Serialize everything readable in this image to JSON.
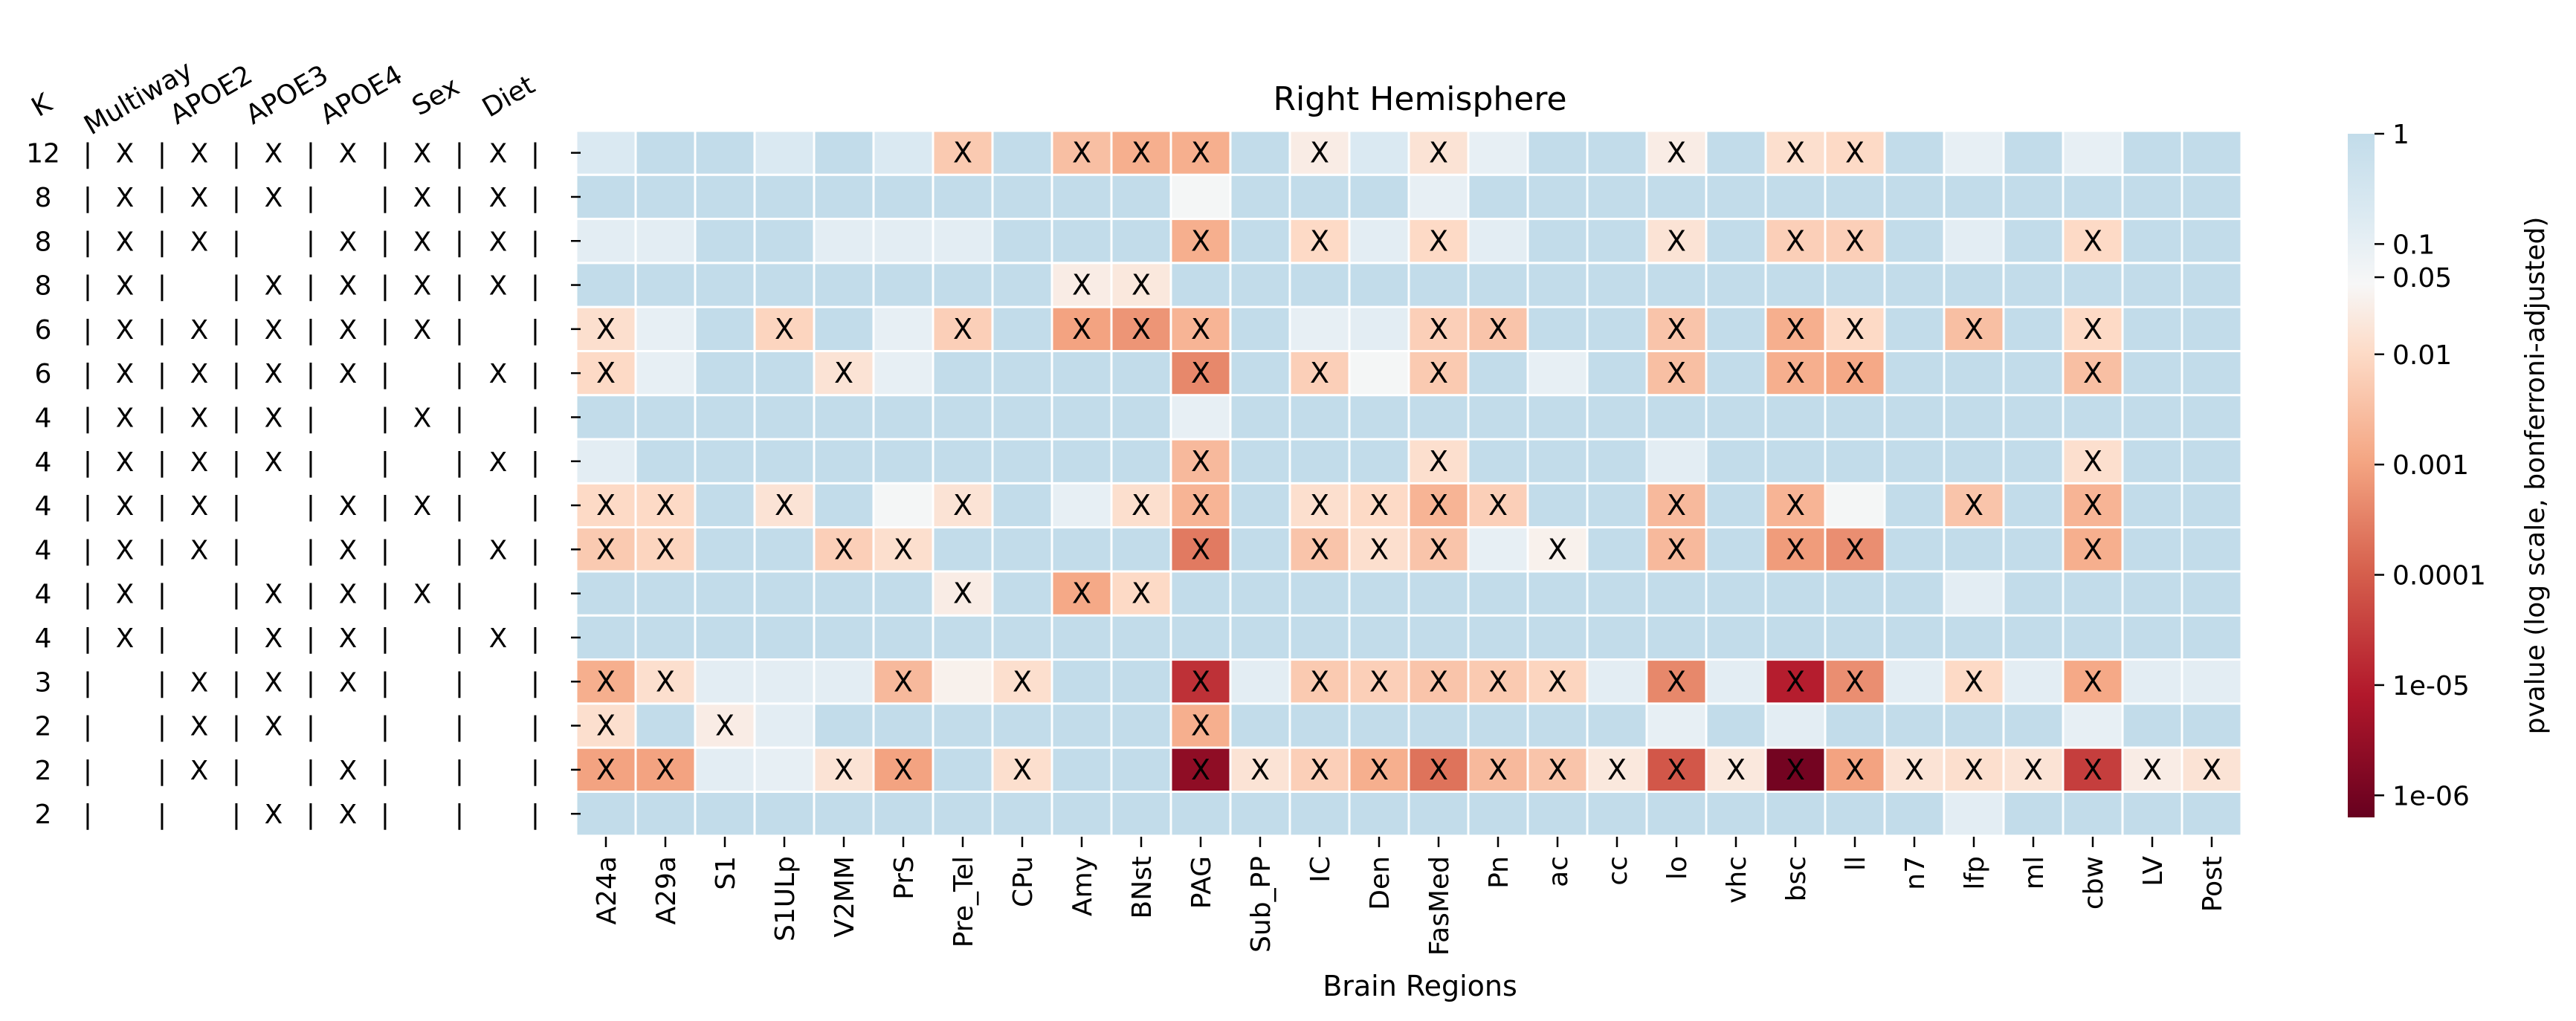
{
  "chart_data": {
    "type": "heatmap",
    "title": "Right Hemisphere",
    "xlabel": "Brain Regions",
    "colorbar_label": "pvalue (log scale, bonferroni-adjusted)",
    "colorbar_ticks": [
      "1",
      "0.1",
      "0.05",
      "0.01",
      "0.001",
      "0.0001",
      "1e-05",
      "1e-06"
    ],
    "colormap": "RdBu",
    "scale": "log",
    "colors": {
      "not_significant": "#c2dcea",
      "high_p": "#dceaf2",
      "neutral": "#f7f7f7",
      "mid": "#f4a582",
      "low_p": "#b2182b",
      "lowest_p": "#67001f"
    },
    "design_headers": [
      "K",
      "Multiway",
      "APOE2",
      "APOE3",
      "APOE4",
      "Sex",
      "Diet"
    ],
    "design_rows": [
      {
        "K": "12",
        "factors": [
          "X",
          "X",
          "X",
          "X",
          "X",
          "X"
        ]
      },
      {
        "K": "8",
        "factors": [
          "X",
          "X",
          "X",
          "",
          "X",
          "X"
        ]
      },
      {
        "K": "8",
        "factors": [
          "X",
          "X",
          "",
          "X",
          "X",
          "X"
        ]
      },
      {
        "K": "8",
        "factors": [
          "X",
          "",
          "X",
          "X",
          "X",
          "X"
        ]
      },
      {
        "K": "6",
        "factors": [
          "X",
          "X",
          "X",
          "X",
          "X",
          ""
        ]
      },
      {
        "K": "6",
        "factors": [
          "X",
          "X",
          "X",
          "X",
          "",
          "X"
        ]
      },
      {
        "K": "4",
        "factors": [
          "X",
          "X",
          "X",
          "",
          "X",
          ""
        ]
      },
      {
        "K": "4",
        "factors": [
          "X",
          "X",
          "X",
          "",
          "",
          "X"
        ]
      },
      {
        "K": "4",
        "factors": [
          "X",
          "X",
          "",
          "X",
          "X",
          ""
        ]
      },
      {
        "K": "4",
        "factors": [
          "X",
          "X",
          "",
          "X",
          "",
          "X"
        ]
      },
      {
        "K": "4",
        "factors": [
          "X",
          "",
          "X",
          "X",
          "X",
          ""
        ]
      },
      {
        "K": "4",
        "factors": [
          "X",
          "",
          "X",
          "X",
          "",
          "X"
        ]
      },
      {
        "K": "3",
        "factors": [
          "",
          "X",
          "X",
          "X",
          "",
          ""
        ]
      },
      {
        "K": "2",
        "factors": [
          "",
          "X",
          "X",
          "",
          "",
          ""
        ]
      },
      {
        "K": "2",
        "factors": [
          "",
          "X",
          "",
          "X",
          "",
          ""
        ]
      },
      {
        "K": "2",
        "factors": [
          "",
          "",
          "X",
          "X",
          "",
          ""
        ]
      }
    ],
    "regions": [
      "A24a",
      "A29a",
      "S1",
      "S1ULp",
      "V2MM",
      "PrS",
      "Pre_Tel",
      "CPu",
      "Amy",
      "BNst",
      "PAG",
      "Sub_PP",
      "IC",
      "Den",
      "FasMed",
      "Pn",
      "ac",
      "cc",
      "lo",
      "vhc",
      "bsc",
      "ll",
      "n7",
      "lfp",
      "ml",
      "cbw",
      "LV",
      "Post"
    ],
    "mark_label": "X",
    "log10_pvalues": [
      [
        -0.7,
        0,
        0,
        -0.7,
        0,
        -0.7,
        -2.3,
        0,
        -2.5,
        -2.8,
        -2.8,
        0,
        -1.6,
        -0.7,
        -1.8,
        -1.0,
        0,
        0,
        -1.6,
        0,
        -1.9,
        -2.0,
        0,
        -1.0,
        0,
        -1.0,
        0,
        0
      ],
      [
        0,
        0,
        0,
        0,
        0,
        0,
        0,
        0,
        0,
        0,
        -1.3,
        0,
        0,
        0,
        -1.0,
        0,
        0,
        0,
        0,
        0,
        0,
        0,
        0,
        0,
        0,
        0,
        0,
        0
      ],
      [
        -0.9,
        -0.9,
        0,
        0,
        -0.9,
        -0.9,
        -0.9,
        0,
        0,
        0,
        -2.8,
        0,
        -2.0,
        -0.9,
        -2.0,
        -0.9,
        0,
        0,
        -1.8,
        0,
        -2.2,
        -2.2,
        0,
        -0.9,
        0,
        -2.0,
        0,
        0
      ],
      [
        0,
        0,
        0,
        0,
        0,
        0,
        0,
        0,
        -1.6,
        -1.7,
        0,
        0,
        0,
        0,
        0,
        0,
        0,
        0,
        0,
        0,
        0,
        0,
        0,
        0,
        0,
        0,
        0,
        0
      ],
      [
        -1.9,
        -1.0,
        0,
        -2.1,
        0,
        -1.0,
        -2.2,
        0,
        -3.0,
        -3.2,
        -2.7,
        0,
        -1.0,
        -0.9,
        -2.2,
        -2.4,
        0,
        0,
        -2.4,
        0,
        -2.8,
        -2.0,
        0,
        -2.5,
        0,
        -2.0,
        0,
        0
      ],
      [
        -2.0,
        -1.0,
        0,
        0,
        -1.8,
        -1.0,
        0,
        0,
        0,
        0,
        -3.4,
        0,
        -2.2,
        -1.3,
        -2.3,
        0,
        -1.0,
        0,
        -2.5,
        0,
        -2.8,
        -2.9,
        0,
        0,
        0,
        -2.5,
        0,
        0
      ],
      [
        0,
        0,
        0,
        0,
        0,
        0,
        0,
        0,
        0,
        0,
        -1.0,
        0,
        0,
        0,
        0,
        0,
        0,
        0,
        0,
        0,
        0,
        0,
        0,
        0,
        0,
        0,
        0,
        0
      ],
      [
        -0.9,
        0,
        0,
        0,
        0,
        0,
        0,
        0,
        0,
        0,
        -2.6,
        0,
        0,
        0,
        -1.9,
        0,
        0,
        0,
        -0.9,
        0,
        0,
        0,
        0,
        0,
        0,
        -1.9,
        0,
        0
      ],
      [
        -2.0,
        -2.0,
        0,
        -1.8,
        0,
        -1.3,
        -1.8,
        0,
        -1.0,
        -1.9,
        -2.7,
        0,
        -1.9,
        -2.0,
        -2.7,
        -2.2,
        0,
        0,
        -2.6,
        0,
        -2.7,
        -1.3,
        0,
        -2.4,
        0,
        -2.7,
        0,
        0
      ],
      [
        -2.3,
        -2.1,
        0,
        0,
        -2.2,
        -1.9,
        0,
        0,
        0,
        0,
        -3.6,
        0,
        -2.4,
        -1.9,
        -2.4,
        -1.0,
        -1.5,
        0,
        -2.6,
        0,
        -3.1,
        -3.3,
        0,
        0,
        0,
        -2.8,
        0,
        0
      ],
      [
        0,
        0,
        0,
        0,
        0,
        0,
        -1.6,
        0,
        -2.9,
        -2.0,
        0,
        0,
        0,
        0,
        0,
        0,
        0,
        0,
        0,
        0,
        0,
        0,
        0,
        -0.9,
        0,
        0,
        0,
        0
      ],
      [
        0,
        0,
        0,
        0,
        0,
        0,
        0,
        0,
        0,
        0,
        0,
        0,
        0,
        0,
        0,
        0,
        0,
        0,
        0,
        0,
        0,
        0,
        0,
        0,
        0,
        0,
        0,
        0
      ],
      [
        -2.8,
        -1.9,
        -0.9,
        -0.9,
        -0.9,
        -2.6,
        -1.5,
        -1.9,
        0,
        0,
        -4.7,
        -0.9,
        -2.3,
        -2.2,
        -2.4,
        -2.3,
        -2.1,
        -0.9,
        -3.4,
        -0.9,
        -5.0,
        -3.3,
        -0.9,
        -2.0,
        -0.9,
        -2.9,
        -0.9,
        -0.9
      ],
      [
        -1.9,
        0,
        -1.6,
        -0.9,
        0,
        0,
        0,
        0,
        0,
        0,
        -2.8,
        0,
        0,
        0,
        0,
        0,
        0,
        0,
        -1.0,
        0,
        -0.9,
        0,
        0,
        0,
        0,
        -1.0,
        0,
        0
      ],
      [
        -3.0,
        -3.0,
        -0.9,
        -1.0,
        -1.8,
        -3.0,
        0,
        -1.9,
        0,
        0,
        -5.6,
        -1.8,
        -2.2,
        -2.8,
        -3.7,
        -2.6,
        -2.4,
        -1.7,
        -4.1,
        -1.7,
        -6.0,
        -3.0,
        -1.8,
        -1.9,
        -1.8,
        -4.5,
        -1.6,
        -1.8
      ],
      [
        0,
        0,
        0,
        0,
        0,
        0,
        0,
        0,
        0,
        0,
        0,
        0,
        0,
        0,
        0,
        0,
        0,
        0,
        0,
        0,
        0,
        0,
        0,
        -0.9,
        0,
        0,
        0,
        0
      ]
    ],
    "significant_marks": [
      [
        "",
        "",
        "",
        "",
        "",
        "",
        "X",
        "",
        "X",
        "X",
        "X",
        "",
        "X",
        "",
        "X",
        "",
        "",
        "",
        "X",
        "",
        "X",
        "X",
        "",
        "",
        "",
        "",
        "",
        ""
      ],
      [
        "",
        "",
        "",
        "",
        "",
        "",
        "",
        "",
        "",
        "",
        "",
        "",
        "",
        "",
        "",
        "",
        "",
        "",
        "",
        "",
        "",
        "",
        "",
        "",
        "",
        "",
        "",
        ""
      ],
      [
        "",
        "",
        "",
        "",
        "",
        "",
        "",
        "",
        "",
        "",
        "X",
        "",
        "X",
        "",
        "X",
        "",
        "",
        "",
        "X",
        "",
        "X",
        "X",
        "",
        "",
        "",
        "X",
        "",
        ""
      ],
      [
        "",
        "",
        "",
        "",
        "",
        "",
        "",
        "",
        "X",
        "X",
        "",
        "",
        "",
        "",
        "",
        "",
        "",
        "",
        "",
        "",
        "",
        "",
        "",
        "",
        "",
        "",
        "",
        ""
      ],
      [
        "X",
        "",
        "",
        "X",
        "",
        "",
        "X",
        "",
        "X",
        "X",
        "X",
        "",
        "",
        "",
        "X",
        "X",
        "",
        "",
        "X",
        "",
        "X",
        "X",
        "",
        "X",
        "",
        "X",
        "",
        ""
      ],
      [
        "X",
        "",
        "",
        "",
        "X",
        "",
        "",
        "",
        "",
        "",
        "X",
        "",
        "X",
        "",
        "X",
        "",
        "",
        "",
        "X",
        "",
        "X",
        "X",
        "",
        "",
        "",
        "X",
        "",
        ""
      ],
      [
        "",
        "",
        "",
        "",
        "",
        "",
        "",
        "",
        "",
        "",
        "",
        "",
        "",
        "",
        "",
        "",
        "",
        "",
        "",
        "",
        "",
        "",
        "",
        "",
        "",
        "",
        "",
        ""
      ],
      [
        "",
        "",
        "",
        "",
        "",
        "",
        "",
        "",
        "",
        "",
        "X",
        "",
        "",
        "",
        "X",
        "",
        "",
        "",
        "",
        "",
        "",
        "",
        "",
        "",
        "",
        "X",
        "",
        ""
      ],
      [
        "X",
        "X",
        "",
        "X",
        "",
        "",
        "X",
        "",
        "",
        "X",
        "X",
        "",
        "X",
        "X",
        "X",
        "X",
        "",
        "",
        "X",
        "",
        "X",
        "",
        "",
        "X",
        "",
        "X",
        "",
        ""
      ],
      [
        "X",
        "X",
        "",
        "",
        "X",
        "X",
        "",
        "",
        "",
        "",
        "X",
        "",
        "X",
        "X",
        "X",
        "",
        "X",
        "",
        "X",
        "",
        "X",
        "X",
        "",
        "",
        "",
        "X",
        "",
        ""
      ],
      [
        "",
        "",
        "",
        "",
        "",
        "",
        "X",
        "",
        "X",
        "X",
        "",
        "",
        "",
        "",
        "",
        "",
        "",
        "",
        "",
        "",
        "",
        "",
        "",
        "",
        "",
        "",
        "",
        ""
      ],
      [
        "",
        "",
        "",
        "",
        "",
        "",
        "",
        "",
        "",
        "",
        "",
        "",
        "",
        "",
        "",
        "",
        "",
        "",
        "",
        "",
        "",
        "",
        "",
        "",
        "",
        "",
        "",
        ""
      ],
      [
        "X",
        "X",
        "",
        "",
        "",
        "X",
        "",
        "X",
        "",
        "",
        "X",
        "",
        "X",
        "X",
        "X",
        "X",
        "X",
        "",
        "X",
        "",
        "X",
        "X",
        "",
        "X",
        "",
        "X",
        "",
        ""
      ],
      [
        "X",
        "",
        "X",
        "",
        "",
        "",
        "",
        "",
        "",
        "",
        "X",
        "",
        "",
        "",
        "",
        "",
        "",
        "",
        "",
        "",
        "",
        "",
        "",
        "",
        "",
        "",
        "",
        ""
      ],
      [
        "X",
        "X",
        "",
        "",
        "X",
        "X",
        "",
        "X",
        "",
        "",
        "X",
        "X",
        "X",
        "X",
        "X",
        "X",
        "X",
        "X",
        "X",
        "X",
        "X",
        "X",
        "X",
        "X",
        "X",
        "X",
        "X",
        "X"
      ],
      [
        "",
        "",
        "",
        "",
        "",
        "",
        "",
        "",
        "",
        "",
        "",
        "",
        "",
        "",
        "",
        "",
        "",
        "",
        "",
        "",
        "",
        "",
        "",
        "",
        "",
        "",
        "",
        ""
      ]
    ]
  }
}
